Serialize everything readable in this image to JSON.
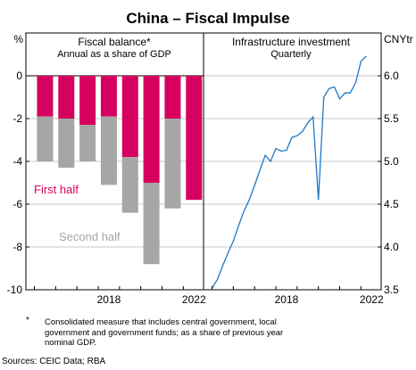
{
  "title": "China – Fiscal Impulse",
  "colors": {
    "first_half": "#d6005f",
    "second_half": "#a6a6a6",
    "line": "#1f77c8",
    "frame": "#000000"
  },
  "chart_data": [
    {
      "type": "bar",
      "stacked": true,
      "title": "Fiscal balance*",
      "subtitle": "Annual as a share of GDP",
      "y_unit": "%",
      "ylim": [
        -10,
        2
      ],
      "yticks": [
        "0",
        "-2",
        "-4",
        "-6",
        "-8",
        "-10"
      ],
      "ytick_values": [
        0,
        -2,
        -4,
        -6,
        -8,
        -10
      ],
      "xticks": [
        "2018",
        "2022"
      ],
      "xtick_values": [
        2018,
        2022
      ],
      "categories": [
        2015,
        2016,
        2017,
        2018,
        2019,
        2020,
        2021,
        2022
      ],
      "series": [
        {
          "name": "First half",
          "values": [
            -1.9,
            -2.0,
            -2.3,
            -1.9,
            -3.8,
            -5.0,
            -2.0,
            -5.8
          ]
        },
        {
          "name": "Second half",
          "values": [
            -2.1,
            -2.3,
            -1.7,
            -3.2,
            -2.6,
            -3.8,
            -4.2,
            0
          ]
        }
      ],
      "grid": "horizontal"
    },
    {
      "type": "line",
      "title": "Infrastructure investment",
      "subtitle": "Quarterly",
      "y_unit": "CNYtr",
      "ylim": [
        3.5,
        6.5
      ],
      "yticks": [
        "6.0",
        "5.5",
        "5.0",
        "4.5",
        "4.0",
        "3.5"
      ],
      "ytick_values": [
        6.0,
        5.5,
        5.0,
        4.5,
        4.0,
        3.5
      ],
      "xticks": [
        "2018",
        "2022"
      ],
      "xtick_values": [
        2018,
        2022
      ],
      "x": [
        2015.0,
        2015.25,
        2015.5,
        2015.75,
        2016.0,
        2016.25,
        2016.5,
        2016.75,
        2017.0,
        2017.25,
        2017.5,
        2017.75,
        2018.0,
        2018.25,
        2018.5,
        2018.75,
        2019.0,
        2019.25,
        2019.5,
        2019.75,
        2020.0,
        2020.25,
        2020.5,
        2020.75,
        2021.0,
        2021.25,
        2021.5,
        2021.75,
        2022.0,
        2022.25
      ],
      "y": [
        3.52,
        3.62,
        3.78,
        3.93,
        4.07,
        4.25,
        4.42,
        4.55,
        4.72,
        4.9,
        5.07,
        5.0,
        5.15,
        5.12,
        5.13,
        5.28,
        5.3,
        5.35,
        5.45,
        5.52,
        4.55,
        5.75,
        5.85,
        5.87,
        5.73,
        5.8,
        5.8,
        5.92,
        6.17,
        6.23
      ],
      "series_name": "",
      "grid": "horizontal"
    }
  ],
  "legend": {
    "first_half": "First half",
    "second_half": "Second half"
  },
  "footnote": {
    "marker": "*",
    "lines": [
      "Consolidated measure that includes central government, local",
      "government and government funds; as a share of previous year",
      "nominal GDP."
    ]
  },
  "sources": "Sources: CEIC Data; RBA"
}
